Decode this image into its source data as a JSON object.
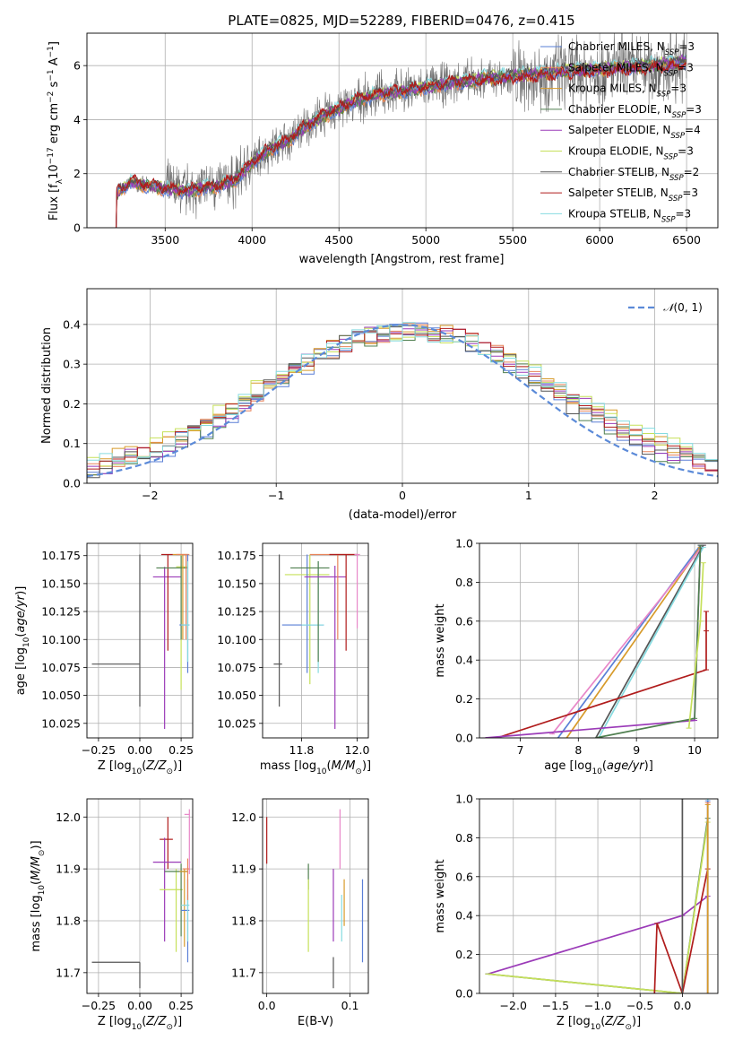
{
  "title": "PLATE=0825, MJD=52289, FIBERID=0476, z=0.415",
  "colors": {
    "Chabrier MILES": "#5a7fd6",
    "Salpeter MILES": "#e8845a",
    "Kroupa MILES": "#d79a2a",
    "Chabrier ELODIE": "#4f7f4f",
    "Salpeter ELODIE": "#9b3bb8",
    "Kroupa ELODIE": "#c6e05a",
    "Chabrier STELIB": "#555555",
    "Salpeter STELIB": "#b01c1c",
    "Kroupa STELIB": "#86dbe0",
    "pink": "#e887c8",
    "gaussian": "#5b8ad8"
  },
  "chart_data": [
    {
      "id": "spectrum",
      "type": "line",
      "xlabel": "wavelength [Angstrom, rest frame]",
      "ylabel": "Flux [f_λ 10^-17 erg cm^-2 s^-1 A^-1]",
      "xlim": [
        3050,
        6680
      ],
      "ylim": [
        0,
        7.2
      ],
      "xticks": [
        3500,
        4000,
        4500,
        5000,
        5500,
        6000,
        6500
      ],
      "yticks": [
        0,
        2,
        4,
        6
      ],
      "legend_position": "upper right",
      "legend": [
        {
          "model": "Chabrier MILES",
          "nssp": "3"
        },
        {
          "model": "Salpeter MILES",
          "nssp": "3"
        },
        {
          "model": "Kroupa MILES",
          "nssp": "3"
        },
        {
          "model": "Chabrier ELODIE",
          "nssp": "3"
        },
        {
          "model": "Salpeter ELODIE",
          "nssp": "4"
        },
        {
          "model": "Kroupa ELODIE",
          "nssp": "3"
        },
        {
          "model": "Chabrier STELIB",
          "nssp": "2"
        },
        {
          "model": "Salpeter STELIB",
          "nssp": "3"
        },
        {
          "model": "Kroupa STELIB",
          "nssp": "3"
        }
      ],
      "nssp_prefix": "N",
      "nssp_sub": "SSP",
      "data_continuum": {
        "x": [
          3210,
          3300,
          3400,
          3500,
          3600,
          3700,
          3800,
          3900,
          4000,
          4100,
          4200,
          4300,
          4400,
          4500,
          4600,
          4700,
          4800,
          4900,
          5000,
          5200,
          5400,
          5600,
          5800,
          6000,
          6200,
          6400,
          6500
        ],
        "y": [
          1.2,
          1.7,
          1.55,
          1.45,
          1.35,
          1.45,
          1.55,
          1.75,
          2.4,
          2.9,
          3.2,
          3.7,
          4.1,
          4.4,
          4.7,
          4.9,
          5.0,
          5.1,
          5.2,
          5.4,
          5.5,
          5.6,
          5.75,
          5.8,
          5.9,
          6.0,
          6.1
        ]
      }
    },
    {
      "id": "residuals",
      "type": "histogram",
      "xlabel": "(data-model)/error",
      "ylabel": "Normed distribution",
      "xlim": [
        -2.5,
        2.5
      ],
      "ylim": [
        0,
        0.49
      ],
      "xticks": [
        -2,
        -1,
        0,
        1,
        2
      ],
      "yticks": [
        0.0,
        0.1,
        0.2,
        0.3,
        0.4
      ],
      "legend": "N(0,1)",
      "legend_position": "upper right",
      "bin_width": 0.1
    },
    {
      "id": "age_vs_Z",
      "type": "errorbar",
      "xlabel": "Z [log10(Z/Z⊙)]",
      "ylabel": "age [log10(age/yr)]",
      "xlim": [
        -0.32,
        0.32
      ],
      "ylim": [
        10.012,
        10.186
      ],
      "xticks": [
        -0.25,
        0.0,
        0.25
      ],
      "yticks": [
        10.025,
        10.05,
        10.075,
        10.1,
        10.125,
        10.15,
        10.175
      ],
      "points": [
        {
          "c": "Chabrier STELIB",
          "x": 0.0,
          "xl": -0.29,
          "xh": 0.0,
          "y": 10.078,
          "yl": 10.04,
          "yh": 10.176
        },
        {
          "c": "Salpeter ELODIE",
          "x": 0.15,
          "xl": 0.08,
          "xh": 0.25,
          "y": 10.156,
          "yl": 10.02,
          "yh": 10.165
        },
        {
          "c": "Salpeter STELIB",
          "x": 0.17,
          "xl": 0.13,
          "xh": 0.2,
          "y": 10.176,
          "yl": 10.09,
          "yh": 10.176
        },
        {
          "c": "Kroupa ELODIE",
          "x": 0.25,
          "xl": 0.22,
          "xh": 0.29,
          "y": 10.165,
          "yl": 10.055,
          "yh": 10.176
        },
        {
          "c": "Chabrier ELODIE",
          "x": 0.25,
          "xl": 0.1,
          "xh": 0.29,
          "y": 10.164,
          "yl": 10.1,
          "yh": 10.175
        },
        {
          "c": "Kroupa MILES",
          "x": 0.26,
          "xl": 0.2,
          "xh": 0.29,
          "y": 10.176,
          "yl": 10.1,
          "yh": 10.176
        },
        {
          "c": "Salpeter MILES",
          "x": 0.28,
          "xl": 0.22,
          "xh": 0.3,
          "y": 10.176,
          "yl": 10.1,
          "yh": 10.176
        },
        {
          "c": "Chabrier MILES",
          "x": 0.29,
          "xl": 0.24,
          "xh": 0.3,
          "y": 10.113,
          "yl": 10.07,
          "yh": 10.176
        },
        {
          "c": "Kroupa STELIB",
          "x": 0.29,
          "xl": 0.25,
          "xh": 0.3,
          "y": 10.113,
          "yl": 10.08,
          "yh": 10.17
        }
      ]
    },
    {
      "id": "age_vs_mass",
      "type": "errorbar",
      "xlabel": "mass [log10(M/M⊙)]",
      "ylabel": "",
      "xlim": [
        11.66,
        12.04
      ],
      "ylim": [
        10.012,
        10.186
      ],
      "xticks": [
        11.8,
        12.0
      ],
      "yticks": [
        10.025,
        10.05,
        10.075,
        10.1,
        10.125,
        10.15,
        10.175
      ],
      "points": [
        {
          "c": "Chabrier STELIB",
          "x": 11.72,
          "xl": 11.7,
          "xh": 11.73,
          "y": 10.078,
          "yl": 10.04,
          "yh": 10.176
        },
        {
          "c": "Kroupa ELODIE",
          "x": 11.83,
          "xl": 11.74,
          "xh": 11.9,
          "y": 10.158,
          "yl": 10.06,
          "yh": 10.176
        },
        {
          "c": "Chabrier MILES",
          "x": 11.82,
          "xl": 11.73,
          "xh": 11.88,
          "y": 10.113,
          "yl": 10.07,
          "yh": 10.176
        },
        {
          "c": "Kroupa STELIB",
          "x": 11.86,
          "xl": 11.8,
          "xh": 11.88,
          "y": 10.113,
          "yl": 10.07,
          "yh": 10.17
        },
        {
          "c": "Chabrier ELODIE",
          "x": 11.86,
          "xl": 11.76,
          "xh": 11.9,
          "y": 10.164,
          "yl": 10.08,
          "yh": 10.17
        },
        {
          "c": "Salpeter ELODIE",
          "x": 11.92,
          "xl": 11.81,
          "xh": 11.96,
          "y": 10.156,
          "yl": 10.02,
          "yh": 10.166
        },
        {
          "c": "Salpeter MILES",
          "x": 11.93,
          "xl": 11.83,
          "xh": 11.99,
          "y": 10.176,
          "yl": 10.1,
          "yh": 10.176
        },
        {
          "c": "Salpeter STELIB",
          "x": 11.96,
          "xl": 11.9,
          "xh": 12.0,
          "y": 10.176,
          "yl": 10.09,
          "yh": 10.176
        },
        {
          "c": "pink",
          "x": 12.0,
          "xl": 11.99,
          "xh": 12.01,
          "y": 10.176,
          "yl": 10.11,
          "yh": 10.176
        }
      ]
    },
    {
      "id": "massweight_vs_age",
      "type": "line",
      "xlabel": "age [log10(age/yr)]",
      "ylabel": "mass weight",
      "xlim": [
        6.3,
        10.4
      ],
      "ylim": [
        0,
        1
      ],
      "xticks": [
        7,
        8,
        9,
        10
      ],
      "yticks": [
        0.0,
        0.2,
        0.4,
        0.6,
        0.8,
        1.0
      ],
      "series": [
        {
          "c": "Chabrier MILES",
          "x": [
            7.65,
            10.1
          ],
          "y": [
            0.0,
            0.99
          ]
        },
        {
          "c": "Kroupa MILES",
          "x": [
            7.8,
            10.1
          ],
          "y": [
            0.0,
            0.98
          ]
        },
        {
          "c": "pink",
          "x": [
            7.55,
            10.15
          ],
          "y": [
            0.02,
            0.99
          ]
        },
        {
          "c": "Chabrier STELIB",
          "x": [
            8.3,
            10.15
          ],
          "y": [
            0.0,
            0.99
          ]
        },
        {
          "c": "Kroupa STELIB",
          "x": [
            8.35,
            10.15
          ],
          "y": [
            0.0,
            0.98
          ]
        },
        {
          "c": "Salpeter STELIB",
          "x": [
            6.6,
            10.2,
            10.2,
            10.2
          ],
          "y": [
            0.0,
            0.35,
            0.55,
            0.65
          ]
        },
        {
          "c": "Salpeter ELODIE",
          "x": [
            6.4,
            10.0,
            10.1
          ],
          "y": [
            0.0,
            0.09,
            0.99
          ]
        },
        {
          "c": "Chabrier ELODIE",
          "x": [
            8.3,
            10.0,
            10.1
          ],
          "y": [
            0.0,
            0.1,
            0.99
          ]
        },
        {
          "c": "Kroupa ELODIE",
          "x": [
            9.9,
            10.1,
            10.15
          ],
          "y": [
            0.05,
            0.6,
            0.9
          ]
        }
      ]
    },
    {
      "id": "mass_vs_Z",
      "type": "errorbar",
      "xlabel": "Z [log10(Z/Z⊙)]",
      "ylabel": "mass [log10(M/M⊙)]",
      "xlim": [
        -0.32,
        0.32
      ],
      "ylim": [
        11.66,
        12.035
      ],
      "xticks": [
        -0.25,
        0.0,
        0.25
      ],
      "yticks": [
        11.7,
        11.8,
        11.9,
        12.0
      ],
      "points": [
        {
          "c": "Chabrier STELIB",
          "x": 0.0,
          "xl": -0.29,
          "xh": 0.0,
          "y": 11.72,
          "yl": 11.67,
          "yh": 11.72
        },
        {
          "c": "Salpeter STELIB",
          "x": 0.17,
          "xl": 0.12,
          "xh": 0.2,
          "y": 11.957,
          "yl": 11.9,
          "yh": 12.0
        },
        {
          "c": "Salpeter ELODIE",
          "x": 0.15,
          "xl": 0.08,
          "xh": 0.25,
          "y": 11.913,
          "yl": 11.76,
          "yh": 11.96
        },
        {
          "c": "Kroupa ELODIE",
          "x": 0.22,
          "xl": 0.12,
          "xh": 0.26,
          "y": 11.86,
          "yl": 11.74,
          "yh": 11.9
        },
        {
          "c": "Chabrier ELODIE",
          "x": 0.25,
          "xl": 0.15,
          "xh": 0.29,
          "y": 11.895,
          "yl": 11.77,
          "yh": 11.91
        },
        {
          "c": "Kroupa MILES",
          "x": 0.27,
          "xl": 0.24,
          "xh": 0.29,
          "y": 11.895,
          "yl": 11.75,
          "yh": 11.9
        },
        {
          "c": "Chabrier MILES",
          "x": 0.29,
          "xl": 0.25,
          "xh": 0.3,
          "y": 11.82,
          "yl": 11.72,
          "yh": 11.88
        },
        {
          "c": "Kroupa STELIB",
          "x": 0.29,
          "xl": 0.25,
          "xh": 0.3,
          "y": 11.83,
          "yl": 11.76,
          "yh": 11.85
        },
        {
          "c": "pink",
          "x": 0.3,
          "xl": 0.27,
          "xh": 0.3,
          "y": 12.005,
          "yl": 11.89,
          "yh": 12.015
        },
        {
          "c": "Salpeter MILES",
          "x": 0.29,
          "xl": 0.26,
          "xh": 0.3,
          "y": 11.9,
          "yl": 11.84,
          "yh": 11.92
        }
      ]
    },
    {
      "id": "mass_vs_ebv",
      "type": "errorbar",
      "xlabel": "E(B-V)",
      "ylabel": "",
      "xlim": [
        -0.005,
        0.122
      ],
      "ylim": [
        11.66,
        12.035
      ],
      "xticks": [
        0.0,
        0.1
      ],
      "yticks": [
        11.7,
        11.8,
        11.9,
        12.0
      ],
      "points": [
        {
          "c": "Salpeter STELIB",
          "x": 0.0,
          "yl": 11.91,
          "yh": 12.0
        },
        {
          "c": "Chabrier ELODIE",
          "x": 0.05,
          "yl": 11.86,
          "yh": 11.91
        },
        {
          "c": "Kroupa ELODIE",
          "x": 0.05,
          "yl": 11.74,
          "yh": 11.88
        },
        {
          "c": "Chabrier STELIB",
          "x": 0.08,
          "yl": 11.67,
          "yh": 11.73
        },
        {
          "c": "Salpeter ELODIE",
          "x": 0.08,
          "yl": 11.76,
          "yh": 11.9
        },
        {
          "c": "pink",
          "x": 0.088,
          "yl": 11.9,
          "yh": 12.015
        },
        {
          "c": "Kroupa MILES",
          "x": 0.093,
          "yl": 11.79,
          "yh": 11.88
        },
        {
          "c": "Kroupa STELIB",
          "x": 0.09,
          "yl": 11.76,
          "yh": 11.85
        },
        {
          "c": "Chabrier MILES",
          "x": 0.115,
          "yl": 11.72,
          "yh": 11.88
        }
      ]
    },
    {
      "id": "massweight_vs_Z",
      "type": "line",
      "xlabel": "Z [log10(Z/Z⊙)]",
      "ylabel": "mass weight",
      "xlim": [
        -2.4,
        0.42
      ],
      "ylim": [
        0,
        1
      ],
      "xticks": [
        -2.0,
        -1.5,
        -1.0,
        -0.5,
        0.0
      ],
      "yticks": [
        0.0,
        0.2,
        0.4,
        0.6,
        0.8,
        1.0
      ],
      "series": [
        {
          "c": "Salpeter ELODIE",
          "x": [
            -2.3,
            0.0,
            0.3
          ],
          "y": [
            0.1,
            0.4,
            0.5
          ]
        },
        {
          "c": "Chabrier ELODIE",
          "x": [
            -2.3,
            0.0,
            0.3
          ],
          "y": [
            0.1,
            0.0,
            0.9
          ]
        },
        {
          "c": "Kroupa ELODIE",
          "x": [
            -2.3,
            0.0,
            0.3
          ],
          "y": [
            0.1,
            0.0,
            0.88
          ]
        },
        {
          "c": "Salpeter STELIB",
          "x": [
            -0.33,
            -0.3,
            0.0,
            0.3
          ],
          "y": [
            0.0,
            0.36,
            0.0,
            0.64
          ]
        },
        {
          "c": "Chabrier STELIB",
          "x": [
            0.0,
            0.0
          ],
          "y": [
            0.0,
            1.0
          ]
        },
        {
          "c": "Kroupa STELIB",
          "x": [
            0.3,
            0.3
          ],
          "y": [
            0.0,
            1.0
          ]
        },
        {
          "c": "Chabrier MILES",
          "x": [
            0.3,
            0.3
          ],
          "y": [
            0.0,
            0.99
          ]
        },
        {
          "c": "Salpeter MILES",
          "x": [
            0.3,
            0.3
          ],
          "y": [
            0.0,
            0.98
          ]
        },
        {
          "c": "Kroupa MILES",
          "x": [
            0.3,
            0.3
          ],
          "y": [
            0.0,
            0.97
          ]
        }
      ]
    }
  ]
}
